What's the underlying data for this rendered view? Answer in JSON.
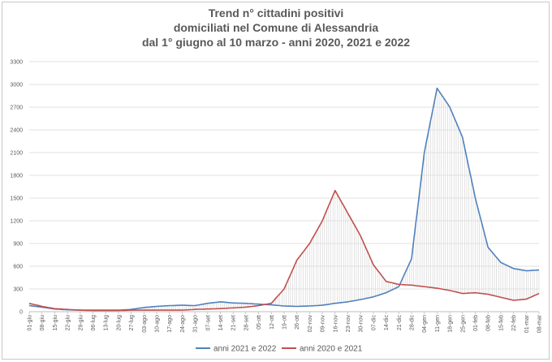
{
  "chart_data": {
    "type": "line",
    "title_lines": [
      "Trend n° cittadini positivi",
      "domiciliati nel Comune di Alessandria",
      "dal 1° giugno al 10 marzo - anni 2020, 2021 e 2022"
    ],
    "ylim": [
      0,
      3300
    ],
    "yticks": [
      0,
      300,
      600,
      900,
      1200,
      1500,
      1800,
      2100,
      2400,
      2700,
      3000,
      3300
    ],
    "grid": true,
    "legend_position": "bottom",
    "categories": [
      "01-giu",
      "08-giu",
      "15-giu",
      "22-giu",
      "29-giu",
      "06-lug",
      "13-lug",
      "20-lug",
      "27-lug",
      "03-ago",
      "10-ago",
      "17-ago",
      "24-ago",
      "31-ago",
      "07-set",
      "14-set",
      "21-set",
      "28-set",
      "05-ott",
      "12-ott",
      "19-ott",
      "26-ott",
      "02-nov",
      "09-nov",
      "16-nov",
      "23-nov",
      "30-nov",
      "07-dic",
      "14-dic",
      "21-dic",
      "28-dic",
      "04-gen",
      "11-gen",
      "18-gen",
      "25-gen",
      "01-feb",
      "08-feb",
      "15-feb",
      "22-feb",
      "01-mar",
      "08-mar"
    ],
    "series": [
      {
        "name": "anni 2021 e 2022",
        "color": "#4f81bd",
        "values": [
          80,
          60,
          35,
          25,
          20,
          20,
          20,
          20,
          30,
          55,
          70,
          80,
          85,
          80,
          110,
          130,
          115,
          110,
          100,
          90,
          75,
          70,
          75,
          85,
          110,
          130,
          160,
          195,
          250,
          330,
          700,
          2100,
          2950,
          2700,
          2300,
          1500,
          850,
          650,
          570,
          540,
          550
        ]
      },
      {
        "name": "anni 2020 e 2021",
        "color": "#c0504d",
        "values": [
          110,
          70,
          40,
          30,
          20,
          15,
          15,
          15,
          20,
          20,
          20,
          20,
          20,
          30,
          35,
          40,
          50,
          60,
          80,
          110,
          300,
          680,
          900,
          1200,
          1600,
          1300,
          1000,
          620,
          400,
          360,
          350,
          330,
          310,
          280,
          240,
          250,
          230,
          190,
          150,
          165,
          240
        ]
      }
    ]
  }
}
